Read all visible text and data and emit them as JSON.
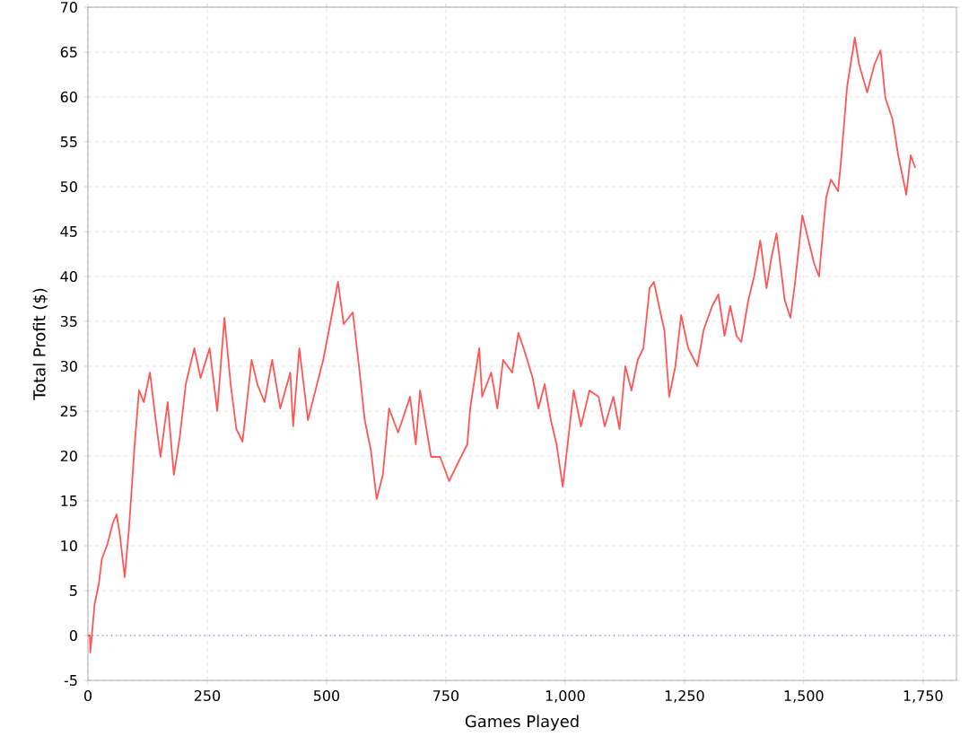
{
  "chart_data": {
    "type": "line",
    "xlabel": "Games Played",
    "ylabel": "Total Profit ($)",
    "x": [
      0,
      4,
      5,
      14,
      23,
      29,
      41,
      52,
      60,
      67,
      77,
      86,
      98,
      107,
      117,
      130,
      142,
      152,
      167,
      180,
      192,
      205,
      223,
      236,
      255,
      271,
      286,
      299,
      311,
      324,
      343,
      355,
      370,
      386,
      403,
      424,
      430,
      443,
      461,
      480,
      493,
      505,
      524,
      536,
      555,
      568,
      580,
      593,
      605,
      618,
      631,
      650,
      675,
      687,
      696,
      719,
      738,
      757,
      776,
      795,
      801,
      820,
      826,
      845,
      858,
      870,
      889,
      902,
      913,
      932,
      944,
      957,
      970,
      982,
      995,
      1008,
      1018,
      1033,
      1051,
      1070,
      1083,
      1101,
      1114,
      1126,
      1139,
      1152,
      1164,
      1177,
      1186,
      1202,
      1208,
      1218,
      1231,
      1243,
      1258,
      1277,
      1290,
      1308,
      1321,
      1334,
      1346,
      1359,
      1369,
      1384,
      1396,
      1409,
      1422,
      1432,
      1443,
      1460,
      1472,
      1482,
      1497,
      1510,
      1522,
      1532,
      1541,
      1547,
      1557,
      1572,
      1578,
      1591,
      1607,
      1616,
      1633,
      1648,
      1661,
      1671,
      1686,
      1698,
      1715,
      1724,
      1734
    ],
    "series": [
      {
        "color": "#ff5555",
        "values": [
          0,
          0,
          -1.9,
          3.5,
          5.8,
          8.5,
          10.2,
          12.5,
          13.5,
          11.2,
          6.5,
          11.9,
          21.3,
          27.3,
          26,
          29.3,
          24,
          19.9,
          26,
          17.9,
          21.9,
          28,
          32,
          28.7,
          32,
          25,
          35.4,
          28,
          23,
          21.6,
          30.7,
          28,
          26,
          30.7,
          25.3,
          29.3,
          23.3,
          32,
          24,
          28,
          30.7,
          34,
          39.4,
          34.7,
          36,
          30,
          24,
          20.6,
          15.2,
          17.9,
          25.3,
          22.6,
          26.6,
          21.3,
          27.3,
          19.9,
          19.9,
          17.2,
          19.3,
          21.3,
          25.3,
          32,
          26.6,
          29.3,
          25.3,
          30.7,
          29.3,
          33.7,
          32,
          28.7,
          25.3,
          28,
          24,
          21.3,
          16.6,
          22.6,
          27.3,
          23.3,
          27.3,
          26.6,
          23.3,
          26.6,
          23,
          30,
          27.3,
          30.7,
          32,
          38.7,
          39.4,
          35.4,
          34,
          26.6,
          30,
          35.7,
          32,
          30,
          34,
          36.7,
          38,
          33.4,
          36.7,
          33.4,
          32.7,
          37.4,
          40,
          44,
          38.7,
          42,
          44.8,
          37.4,
          35.4,
          39.4,
          46.8,
          44,
          41.4,
          40,
          45.4,
          48.8,
          50.8,
          49.5,
          52.8,
          61.2,
          66.6,
          63.6,
          60.5,
          63.6,
          65.2,
          59.9,
          57.5,
          53.5,
          49.1,
          53.5,
          52.1
        ]
      }
    ],
    "xlim": [
      0,
      1820
    ],
    "ylim": [
      -5,
      70
    ],
    "xticks": [
      0,
      250,
      500,
      750,
      {
        "value": 1000,
        "label": "1,000"
      },
      {
        "value": 1250,
        "label": "1,250"
      },
      {
        "value": 1500,
        "label": "1,500"
      },
      {
        "value": 1750,
        "label": "1,750"
      }
    ],
    "yticks": [
      -5,
      0,
      5,
      10,
      15,
      20,
      25,
      30,
      35,
      40,
      45,
      50,
      55,
      60,
      65,
      70
    ],
    "grid": true,
    "ref_lines": [
      {
        "axis": "y",
        "value": 0,
        "color": "#5555ff",
        "line_style": "dotted"
      }
    ]
  }
}
